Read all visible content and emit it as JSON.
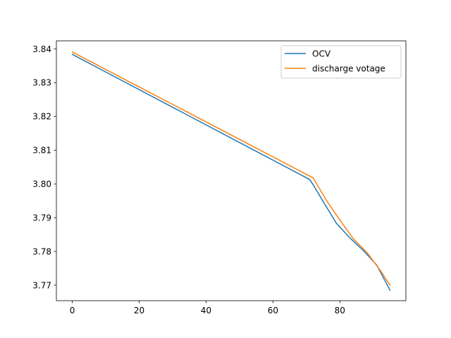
{
  "chart_data": {
    "type": "line",
    "title": "",
    "xlabel": "",
    "ylabel": "",
    "xlim": [
      -4.75,
      99.75
    ],
    "ylim": [
      3.7654,
      3.8424
    ],
    "xticks": [
      0,
      20,
      40,
      60,
      80
    ],
    "xtick_labels": [
      "0",
      "20",
      "40",
      "60",
      "80"
    ],
    "yticks": [
      3.77,
      3.78,
      3.79,
      3.8,
      3.81,
      3.82,
      3.83,
      3.84
    ],
    "ytick_labels": [
      "3.77",
      "3.78",
      "3.79",
      "3.80",
      "3.81",
      "3.82",
      "3.83",
      "3.84"
    ],
    "grid": false,
    "legend_position": "top-right",
    "series": [
      {
        "name": "OCV",
        "color": "#1f77b4",
        "x": [
          0,
          71,
          72,
          75,
          79,
          83,
          87,
          91,
          95
        ],
        "y": [
          3.8384,
          3.8013,
          3.7998,
          3.7948,
          3.7883,
          3.784,
          3.7803,
          3.776,
          3.7685
        ]
      },
      {
        "name": "discharge votage",
        "color": "#ff7f0e",
        "x": [
          0,
          72,
          76,
          80,
          84,
          88,
          92,
          95
        ],
        "y": [
          3.8391,
          3.8018,
          3.7951,
          3.7893,
          3.7838,
          3.7798,
          3.7745,
          3.77
        ]
      }
    ]
  }
}
